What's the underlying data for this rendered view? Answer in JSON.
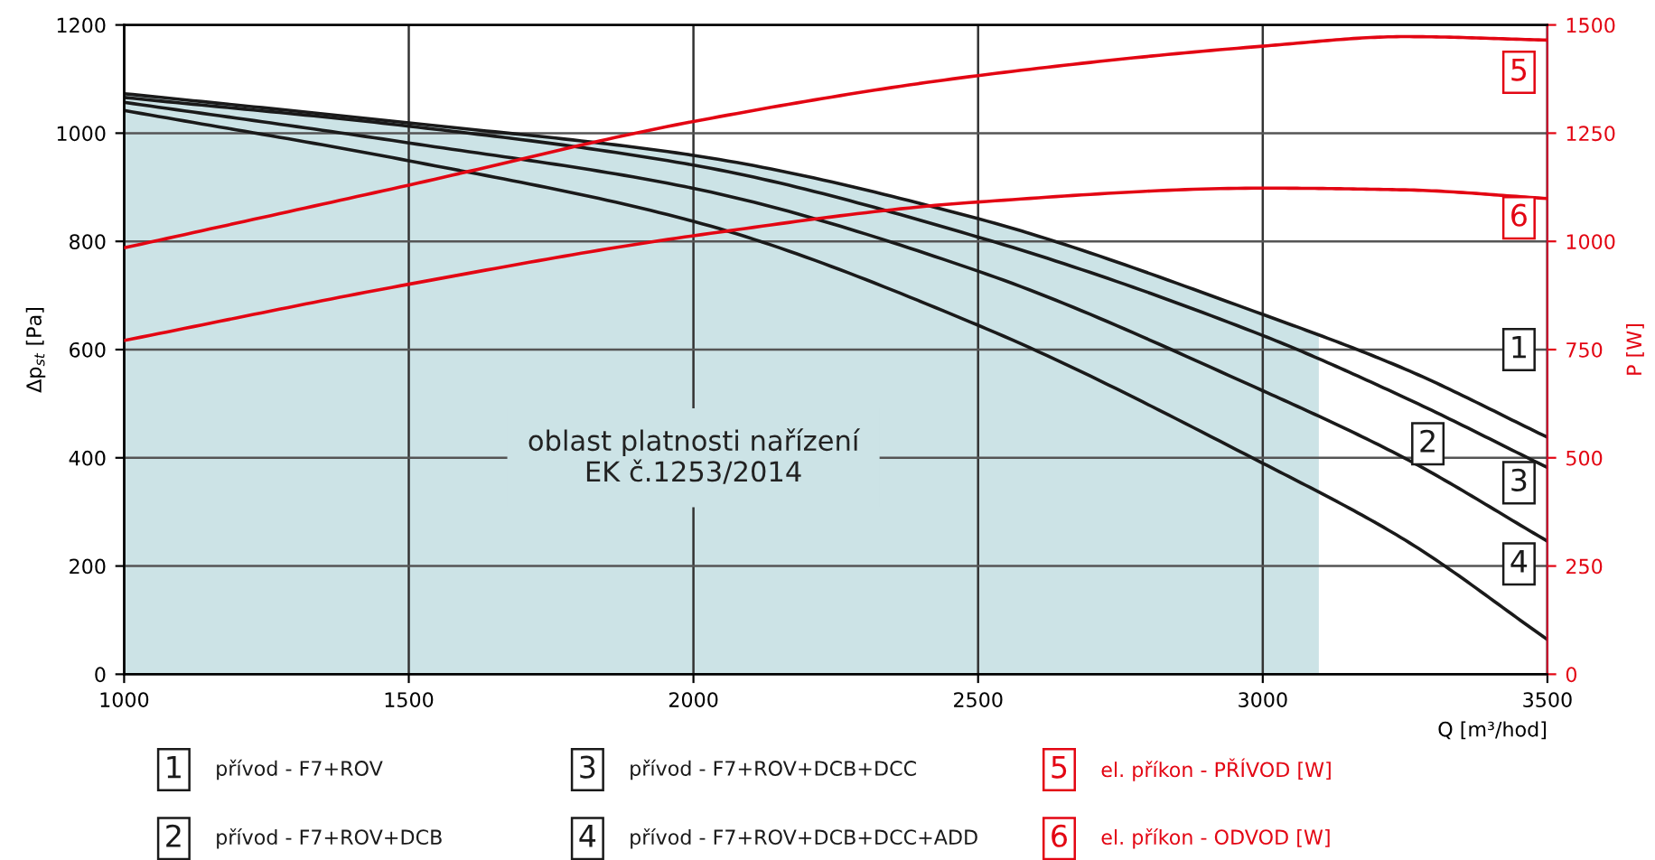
{
  "chart_data": {
    "type": "line",
    "x": [
      1000,
      1500,
      2000,
      2500,
      3000,
      3250,
      3500
    ],
    "series": [
      {
        "name": "přívod - F7+ROV",
        "color": "#1a1a1a",
        "values": [
          1073,
          1019,
          959,
          842,
          665,
          564,
          438
        ]
      },
      {
        "name": "přívod - F7+ROV+DCB",
        "color": "#1a1a1a",
        "values": [
          1066,
          1013,
          941,
          808,
          626,
          511,
          382
        ]
      },
      {
        "name": "přívod - F7+ROV+DCB+DCC",
        "color": "#1a1a1a",
        "values": [
          1057,
          982,
          898,
          745,
          524,
          399,
          246
        ]
      },
      {
        "name": "přívod - F7+ROV+DCB+DCC+ADD",
        "color": "#1a1a1a",
        "values": [
          1042,
          949,
          837,
          645,
          390,
          248,
          64
        ]
      },
      {
        "name": "el. příkon - PŘÍVOD [W]",
        "color": "#e30613",
        "axis": "y2",
        "values": [
          985,
          1130,
          1277,
          1383,
          1451,
          1473,
          1465
        ]
      },
      {
        "name": "el. příkon - ODVOD [W]",
        "color": "#e30613",
        "axis": "y2",
        "values": [
          771,
          901,
          1013,
          1091,
          1123,
          1119,
          1099
        ]
      }
    ],
    "annotations": [
      "1",
      "2",
      "3",
      "4",
      "5",
      "6"
    ],
    "bands": [
      {
        "axis": "x",
        "from": 1000,
        "to": 3100,
        "label": "oblast platnosti nařízení\nEK č.1253/2014",
        "color": "#cce3e6"
      }
    ],
    "xlabel": "Q [m³/hod]",
    "ylabel": "Δp$_{st}$ [Pa]",
    "y2label": "P [W]",
    "xlim": [
      1000,
      3500
    ],
    "xticks": [
      1000,
      1500,
      2000,
      2500,
      3000,
      3500
    ],
    "ylim": [
      0,
      1200
    ],
    "yticks": [
      0,
      200,
      400,
      600,
      800,
      1000,
      1200
    ],
    "y2lim": [
      0,
      1500
    ],
    "y2ticks": [
      0,
      250,
      500,
      750,
      1000,
      1250,
      1500
    ],
    "grid": true,
    "legend": "bottom",
    "marker": "none",
    "line_style": "solid"
  }
}
